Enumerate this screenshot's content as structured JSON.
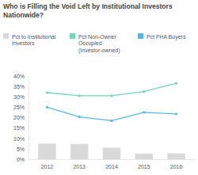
{
  "chart_data": {
    "type": "bar",
    "title": "Who is Filling the Void Left by Institutional Investors Nationwide?",
    "categories": [
      "2012",
      "2013",
      "2014",
      "2015",
      "2016"
    ],
    "series": [
      {
        "name": "Pct to Institutional Investors",
        "type": "bar",
        "color": "#d9d9d9",
        "values": [
          7.5,
          7.3,
          5.5,
          2.7,
          2.8
        ]
      },
      {
        "name": "Pct Non-Owner Occupied (Investor-owned)",
        "type": "line",
        "color": "#6fd6b0",
        "marker": "circle",
        "values": [
          32,
          30.5,
          30.5,
          32.5,
          36.5
        ]
      },
      {
        "name": "Pct FHA Buyers",
        "type": "line",
        "color": "#56b7e6",
        "marker": "circle",
        "values": [
          25,
          20.3,
          18.5,
          22.5,
          21.8
        ]
      }
    ],
    "ylim": [
      0,
      40
    ],
    "yticks": [
      {
        "value": 0,
        "label": "0%"
      },
      {
        "value": 5,
        "label": "5%"
      },
      {
        "value": 10,
        "label": "10%"
      },
      {
        "value": 15,
        "label": "15%"
      },
      {
        "value": 20,
        "label": "20%"
      },
      {
        "value": 25,
        "label": "25%"
      },
      {
        "value": 30,
        "label": "30%"
      },
      {
        "value": 35,
        "label": "35%"
      },
      {
        "value": 40,
        "label": "40%"
      }
    ],
    "grid": false,
    "legend": "top"
  }
}
